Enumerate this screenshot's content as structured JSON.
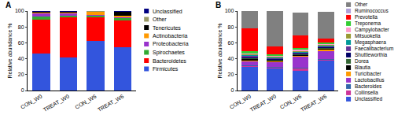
{
  "chart_data": [
    {
      "type": "bar",
      "title": "A",
      "y_label": "Relative abundance %",
      "categories": [
        "CON_W0",
        "TREAT_W0",
        "CON_W6",
        "TREAT_W6"
      ],
      "stacked": true,
      "legend": "right",
      "ylim": [
        0,
        100
      ],
      "yticks": [
        0,
        20,
        40,
        60,
        80,
        100
      ],
      "series": [
        {
          "name": "Firmicutes",
          "color": "#3355dd",
          "values": [
            47,
            42,
            62,
            54
          ]
        },
        {
          "name": "Bacteroidetes",
          "color": "#ff0000",
          "values": [
            42,
            50,
            30,
            34
          ]
        },
        {
          "name": "Spirochaetes",
          "color": "#33aa33",
          "values": [
            4,
            2,
            2,
            3
          ]
        },
        {
          "name": "Proteobacteria",
          "color": "#9933cc",
          "values": [
            4,
            3,
            1,
            1
          ]
        },
        {
          "name": "Actinobacteria",
          "color": "#ff9900",
          "values": [
            1,
            1,
            4,
            2
          ]
        },
        {
          "name": "Tenericutes",
          "color": "#000000",
          "values": [
            1,
            1,
            0.5,
            5
          ]
        },
        {
          "name": "Other",
          "color": "#999966",
          "values": [
            0.5,
            0.5,
            0.3,
            0.5
          ]
        },
        {
          "name": "Unclassified",
          "color": "#000080",
          "values": [
            0.5,
            0.5,
            0.2,
            0.5
          ]
        }
      ]
    },
    {
      "type": "bar",
      "title": "B",
      "y_label": "Relative abundance %",
      "categories": [
        "CON_W0",
        "TREAT_W0",
        "CON_W6",
        "TREAT_W6"
      ],
      "stacked": true,
      "legend": "right",
      "ylim": [
        0,
        100
      ],
      "yticks": [
        0,
        20,
        40,
        60,
        80,
        100
      ],
      "series": [
        {
          "name": "Unclassified",
          "color": "#3355dd",
          "values": [
            30,
            28,
            25,
            38
          ]
        },
        {
          "name": "Collinsella",
          "color": "#cc3399",
          "values": [
            1,
            1,
            3,
            1
          ]
        },
        {
          "name": "Bacteroides",
          "color": "#3366aa",
          "values": [
            1,
            1,
            1,
            1
          ]
        },
        {
          "name": "Lactobacillus",
          "color": "#9933cc",
          "values": [
            5,
            6,
            14,
            10
          ]
        },
        {
          "name": "Turicibacter",
          "color": "#ff9900",
          "values": [
            1,
            1,
            1,
            1
          ]
        },
        {
          "name": "Blautia",
          "color": "#000000",
          "values": [
            2,
            1,
            1,
            1
          ]
        },
        {
          "name": "Dorea",
          "color": "#336633",
          "values": [
            1,
            1,
            1,
            1
          ]
        },
        {
          "name": "Shuttleworthia",
          "color": "#000066",
          "values": [
            1,
            1,
            1,
            1
          ]
        },
        {
          "name": "Faecalibacterium",
          "color": "#663399",
          "values": [
            2,
            1,
            1,
            1
          ]
        },
        {
          "name": "Megasphaera",
          "color": "#009999",
          "values": [
            1,
            1,
            1,
            1
          ]
        },
        {
          "name": "Mitsuokella",
          "color": "#999933",
          "values": [
            1,
            1,
            1,
            1
          ]
        },
        {
          "name": "Campylobacter",
          "color": "#ff99cc",
          "values": [
            1,
            1,
            1,
            1
          ]
        },
        {
          "name": "Treponema",
          "color": "#33cc33",
          "values": [
            3,
            2,
            2,
            2
          ]
        },
        {
          "name": "Prevotella",
          "color": "#ff0000",
          "values": [
            28,
            9,
            16,
            5
          ]
        },
        {
          "name": "Ruminococcus",
          "color": "#b0a0d8",
          "values": [
            0.5,
            0.5,
            0.5,
            0.5
          ]
        },
        {
          "name": "Other",
          "color": "#808080",
          "values": [
            21.5,
            44.5,
            28.5,
            33.5
          ]
        }
      ]
    }
  ]
}
